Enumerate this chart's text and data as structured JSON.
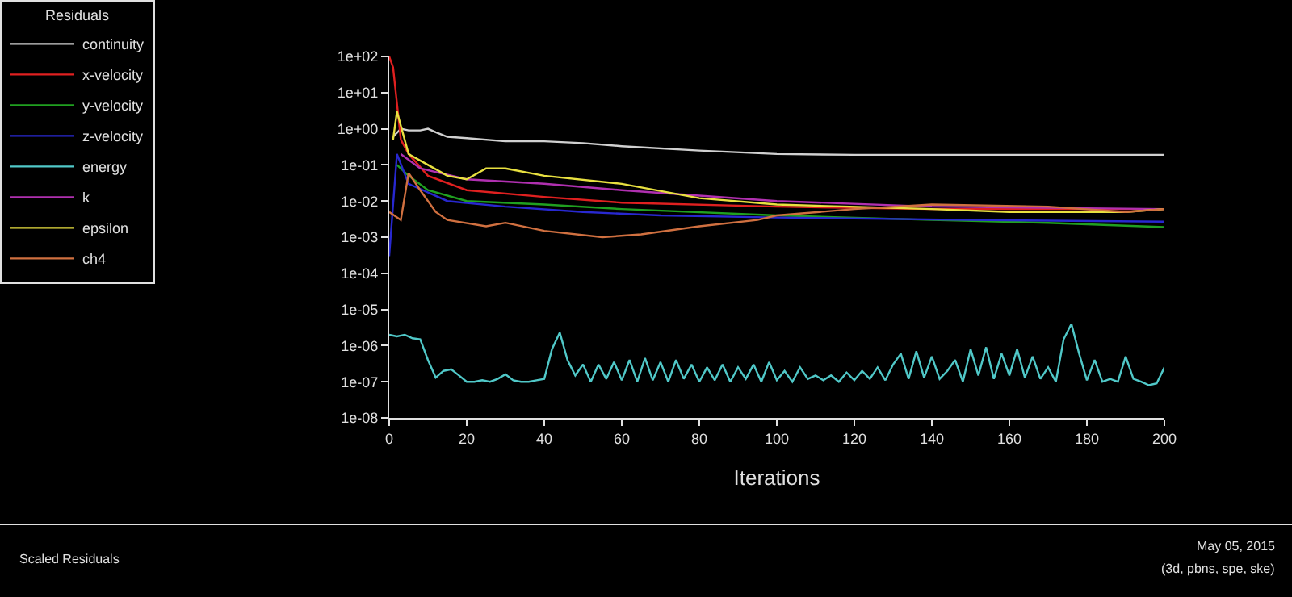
{
  "chart_data": {
    "type": "line",
    "xlabel": "Iterations",
    "legend_title": "Residuals",
    "legend": "top left",
    "log": "y",
    "grid": false,
    "marker": "none",
    "line_style": "solid",
    "xlim": [
      0,
      200
    ],
    "xticks": [
      0,
      20,
      40,
      60,
      80,
      100,
      120,
      140,
      160,
      180,
      200
    ],
    "ylim": [
      1e-08,
      100
    ],
    "yticks": [
      {
        "value": 100,
        "label": "1e+02"
      },
      {
        "value": 10,
        "label": "1e+01"
      },
      {
        "value": 1,
        "label": "1e+00"
      },
      {
        "value": 0.1,
        "label": "1e-01"
      },
      {
        "value": 0.01,
        "label": "1e-02"
      },
      {
        "value": 0.001,
        "label": "1e-03"
      },
      {
        "value": 0.0001,
        "label": "1e-04"
      },
      {
        "value": 1e-05,
        "label": "1e-05"
      },
      {
        "value": 1e-06,
        "label": "1e-06"
      },
      {
        "value": 1e-07,
        "label": "1e-07"
      },
      {
        "value": 1e-08,
        "label": "1e-08"
      }
    ],
    "series": [
      {
        "name": "continuity",
        "color": "#d0d0d0",
        "x": [
          1,
          3,
          5,
          8,
          10,
          12,
          15,
          20,
          30,
          40,
          50,
          60,
          80,
          100,
          120,
          140,
          160,
          180,
          200
        ],
        "values": [
          0.6,
          1.0,
          0.9,
          0.9,
          1.0,
          0.8,
          0.6,
          0.55,
          0.45,
          0.45,
          0.4,
          0.33,
          0.25,
          0.2,
          0.19,
          0.19,
          0.19,
          0.19,
          0.19
        ]
      },
      {
        "name": "x-velocity",
        "color": "#e02020",
        "x": [
          0,
          1,
          3,
          5,
          10,
          20,
          40,
          60,
          100,
          140,
          170,
          200
        ],
        "values": [
          100,
          50,
          0.5,
          0.2,
          0.05,
          0.02,
          0.013,
          0.009,
          0.007,
          0.006,
          0.006,
          0.006
        ]
      },
      {
        "name": "y-velocity",
        "color": "#20a020",
        "x": [
          2,
          5,
          10,
          20,
          40,
          60,
          100,
          140,
          170,
          200
        ],
        "values": [
          0.1,
          0.05,
          0.02,
          0.01,
          0.008,
          0.006,
          0.004,
          0.003,
          0.0025,
          0.0019
        ]
      },
      {
        "name": "z-velocity",
        "color": "#2828d0",
        "x": [
          0,
          2,
          5,
          15,
          30,
          50,
          70,
          100,
          150,
          200
        ],
        "values": [
          0.0003,
          0.2,
          0.03,
          0.01,
          0.007,
          0.005,
          0.004,
          0.0035,
          0.003,
          0.0027
        ]
      },
      {
        "name": "energy",
        "color": "#50c8c8",
        "x": [
          0,
          2,
          4,
          6,
          8,
          10,
          12,
          14,
          16,
          18,
          20,
          22,
          24,
          26,
          28,
          30,
          32,
          34,
          36,
          38,
          40,
          42,
          44,
          46,
          48,
          50,
          52,
          54,
          56,
          58,
          60,
          62,
          64,
          66,
          68,
          70,
          72,
          74,
          76,
          78,
          80,
          82,
          84,
          86,
          88,
          90,
          92,
          94,
          96,
          98,
          100,
          102,
          104,
          106,
          108,
          110,
          112,
          114,
          116,
          118,
          120,
          122,
          124,
          126,
          128,
          130,
          132,
          134,
          136,
          138,
          140,
          142,
          144,
          146,
          148,
          150,
          152,
          154,
          156,
          158,
          160,
          162,
          164,
          166,
          168,
          170,
          172,
          174,
          176,
          178,
          180,
          182,
          184,
          186,
          188,
          190,
          192,
          194,
          196,
          198,
          200
        ],
        "values": [
          2e-06,
          1.8e-06,
          2e-06,
          1.6e-06,
          1.5e-06,
          4e-07,
          1.3e-07,
          2e-07,
          2.2e-07,
          1.5e-07,
          1e-07,
          1e-07,
          1.1e-07,
          1e-07,
          1.2e-07,
          1.6e-07,
          1.1e-07,
          1e-07,
          1e-07,
          1.1e-07,
          1.2e-07,
          8e-07,
          2.3e-06,
          4e-07,
          1.5e-07,
          3e-07,
          1e-07,
          3e-07,
          1.2e-07,
          3.5e-07,
          1.1e-07,
          4e-07,
          1e-07,
          4.5e-07,
          1.1e-07,
          3.5e-07,
          1e-07,
          4e-07,
          1.2e-07,
          3e-07,
          1e-07,
          2.5e-07,
          1.1e-07,
          3e-07,
          1e-07,
          2.5e-07,
          1.2e-07,
          3e-07,
          1e-07,
          3.5e-07,
          1.1e-07,
          2e-07,
          1e-07,
          2.5e-07,
          1.2e-07,
          1.5e-07,
          1.1e-07,
          1.5e-07,
          1e-07,
          1.8e-07,
          1.1e-07,
          2e-07,
          1.2e-07,
          2.5e-07,
          1.1e-07,
          3e-07,
          6e-07,
          1.2e-07,
          7e-07,
          1.3e-07,
          5e-07,
          1.2e-07,
          2e-07,
          4e-07,
          1e-07,
          8e-07,
          1.5e-07,
          9e-07,
          1.2e-07,
          6e-07,
          1.5e-07,
          8e-07,
          1.3e-07,
          5e-07,
          1.2e-07,
          2.5e-07,
          1e-07,
          1.5e-06,
          4e-06,
          6e-07,
          1.1e-07,
          4e-07,
          1e-07,
          1.2e-07,
          1e-07,
          5e-07,
          1.2e-07,
          1e-07,
          8e-08,
          9e-08,
          2.5e-07
        ]
      },
      {
        "name": "k",
        "color": "#b030b0",
        "x": [
          3,
          8,
          20,
          40,
          60,
          100,
          140,
          170,
          200
        ],
        "values": [
          0.2,
          0.08,
          0.04,
          0.03,
          0.02,
          0.01,
          0.007,
          0.0065,
          0.006
        ]
      },
      {
        "name": "epsilon",
        "color": "#e8e040",
        "x": [
          1,
          2,
          5,
          10,
          15,
          20,
          25,
          30,
          40,
          60,
          80,
          100,
          140,
          160,
          190,
          200
        ],
        "values": [
          0.5,
          3,
          0.2,
          0.1,
          0.05,
          0.04,
          0.08,
          0.08,
          0.05,
          0.03,
          0.012,
          0.008,
          0.006,
          0.005,
          0.005,
          0.006
        ]
      },
      {
        "name": "ch4",
        "color": "#d07040",
        "x": [
          0,
          3,
          5,
          8,
          12,
          15,
          25,
          30,
          40,
          55,
          65,
          80,
          95,
          100,
          120,
          140,
          170,
          190,
          200
        ],
        "values": [
          0.005,
          0.003,
          0.06,
          0.02,
          0.005,
          0.003,
          0.002,
          0.0025,
          0.0015,
          0.001,
          0.0012,
          0.002,
          0.003,
          0.004,
          0.006,
          0.008,
          0.007,
          0.005,
          0.006
        ]
      }
    ],
    "annotations": [
      "Scaled Residuals",
      "May 05, 2015",
      "(3d, pbns, spe, ske)"
    ]
  }
}
